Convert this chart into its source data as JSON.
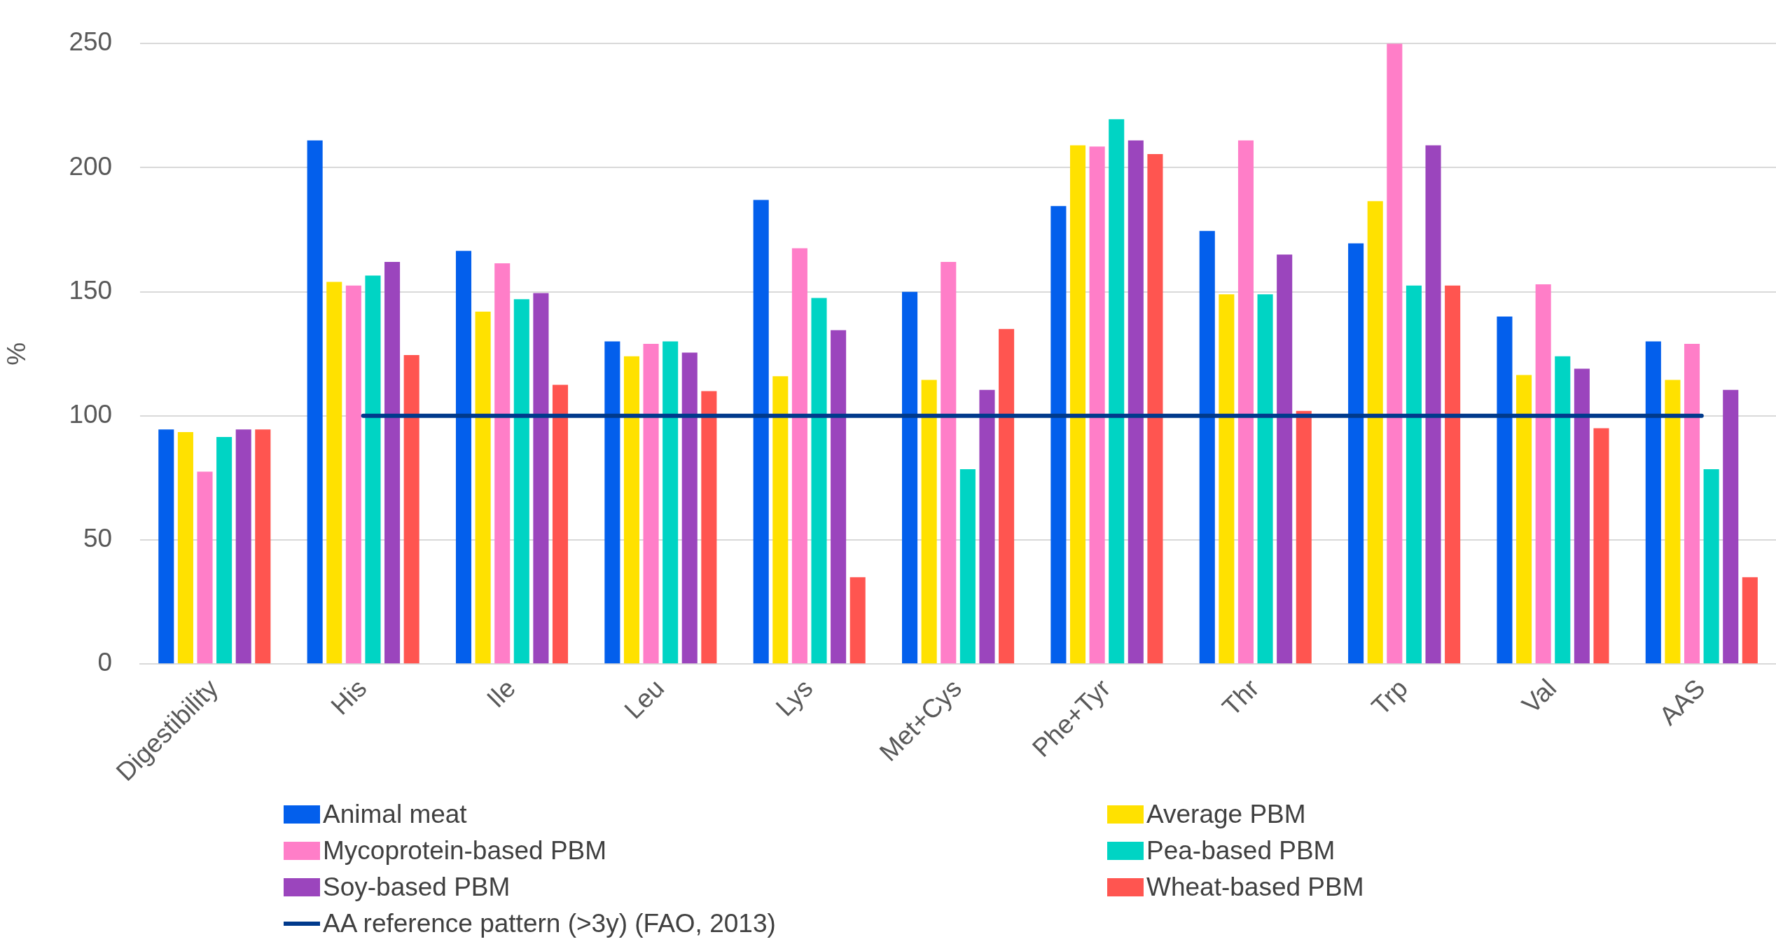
{
  "chart_data": {
    "type": "bar",
    "ylabel": "%",
    "categories": [
      "Digestibility",
      "His",
      "Ile",
      "Leu",
      "Lys",
      "Met+Cys",
      "Phe+Tyr",
      "Thr",
      "Trp",
      "Val",
      "AAS"
    ],
    "ylim": [
      0,
      250
    ],
    "yticks": [
      0,
      50,
      100,
      150,
      200,
      250
    ],
    "grid": "y",
    "legend": "bottom",
    "series": [
      {
        "name": "Animal meat",
        "color": "#035fec",
        "values": [
          94.5,
          211,
          166.5,
          130,
          187,
          150,
          184.5,
          174.5,
          169.5,
          140,
          130
        ]
      },
      {
        "name": "Average PBM",
        "color": "#ffe100",
        "values": [
          93.5,
          154,
          142,
          124,
          116,
          114.5,
          209,
          149,
          186.5,
          116.5,
          114.5
        ]
      },
      {
        "name": "Mycoprotein-based PBM",
        "color": "#ff7ec8",
        "values": [
          77.5,
          152.5,
          161.5,
          129,
          167.5,
          162,
          208.5,
          211,
          250,
          153,
          129
        ]
      },
      {
        "name": "Pea-based PBM",
        "color": "#00d4c4",
        "values": [
          91.5,
          156.5,
          147,
          130,
          147.5,
          78.5,
          219.5,
          149,
          152.5,
          124,
          78.5
        ]
      },
      {
        "name": "Soy-based PBM",
        "color": "#9b45bd",
        "values": [
          94.5,
          162,
          149.5,
          125.5,
          134.5,
          110.5,
          211,
          165,
          209,
          119,
          110.5
        ]
      },
      {
        "name": "Wheat-based PBM",
        "color": "#ff5550",
        "values": [
          94.5,
          124.5,
          112.5,
          110,
          35,
          135,
          205.5,
          102,
          152.5,
          95,
          35
        ]
      },
      {
        "name": "AA reference pattern (>3y) (FAO, 2013)",
        "type": "line",
        "color": "#003a8c",
        "values": [
          null,
          100,
          100,
          100,
          100,
          100,
          100,
          100,
          100,
          100,
          100
        ]
      }
    ]
  }
}
